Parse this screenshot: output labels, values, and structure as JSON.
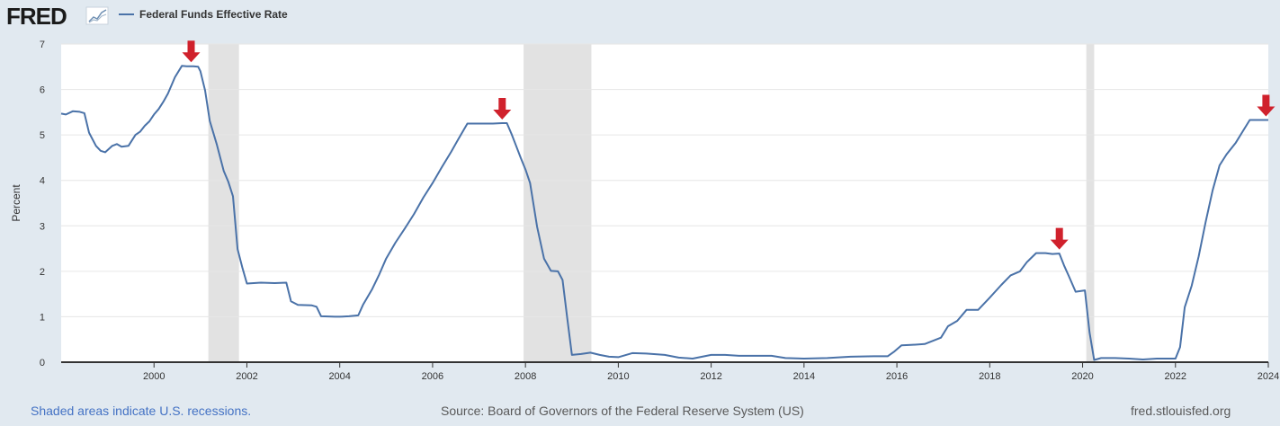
{
  "header": {
    "logo_text": "FRED",
    "legend_label": "Federal Funds Effective Rate"
  },
  "footer": {
    "recession_note": "Shaded areas indicate U.S. recessions.",
    "source": "Source: Board of Governors of the Federal Reserve System (US)",
    "site": "fred.stlouisfed.org"
  },
  "colors": {
    "line": "#4a72a8",
    "arrow": "#d0212c",
    "recession": "#e2e2e2",
    "background": "#e1e9f0",
    "plot": "#ffffff"
  },
  "chart_data": {
    "type": "line",
    "title": "",
    "xlabel": "",
    "ylabel": "Percent",
    "xlim": [
      1998.0,
      2024.0
    ],
    "ylim": [
      0,
      7
    ],
    "x_ticks": [
      "2000",
      "2002",
      "2004",
      "2006",
      "2008",
      "2010",
      "2012",
      "2014",
      "2016",
      "2018",
      "2020",
      "2022",
      "2024"
    ],
    "y_ticks": [
      "0",
      "1",
      "2",
      "3",
      "4",
      "5",
      "6",
      "7"
    ],
    "grid": "horizontal",
    "legend_position": "top-left",
    "recessions": [
      {
        "start": 2001.17,
        "end": 2001.83
      },
      {
        "start": 2007.96,
        "end": 2009.42
      },
      {
        "start": 2020.08,
        "end": 2020.25
      }
    ],
    "series": [
      {
        "name": "Federal Funds Effective Rate",
        "x": [
          1998.0,
          1998.1,
          1998.25,
          1998.4,
          1998.5,
          1998.6,
          1998.75,
          1998.85,
          1998.95,
          1999.1,
          1999.2,
          1999.3,
          1999.45,
          1999.6,
          1999.7,
          1999.8,
          1999.9,
          2000.0,
          2000.1,
          2000.2,
          2000.3,
          2000.45,
          2000.6,
          2000.7,
          2000.85,
          2000.95,
          2001.0,
          2001.1,
          2001.2,
          2001.35,
          2001.5,
          2001.6,
          2001.7,
          2001.8,
          2001.9,
          2002.0,
          2002.3,
          2002.6,
          2002.85,
          2002.95,
          2003.1,
          2003.4,
          2003.5,
          2003.6,
          2003.9,
          2004.0,
          2004.2,
          2004.4,
          2004.5,
          2004.7,
          2004.85,
          2005.0,
          2005.2,
          2005.4,
          2005.6,
          2005.8,
          2006.0,
          2006.2,
          2006.4,
          2006.55,
          2006.75,
          2007.0,
          2007.3,
          2007.5,
          2007.6,
          2007.7,
          2007.8,
          2007.9,
          2008.0,
          2008.1,
          2008.25,
          2008.4,
          2008.55,
          2008.7,
          2008.8,
          2008.9,
          2009.0,
          2009.2,
          2009.4,
          2009.6,
          2009.8,
          2010.0,
          2010.3,
          2010.6,
          2011.0,
          2011.3,
          2011.6,
          2012.0,
          2012.3,
          2012.6,
          2013.0,
          2013.3,
          2013.6,
          2014.0,
          2014.5,
          2015.0,
          2015.5,
          2015.8,
          2015.95,
          2016.1,
          2016.3,
          2016.6,
          2016.95,
          2017.1,
          2017.3,
          2017.5,
          2017.75,
          2018.0,
          2018.25,
          2018.45,
          2018.65,
          2018.8,
          2019.0,
          2019.2,
          2019.35,
          2019.5,
          2019.6,
          2019.7,
          2019.85,
          2020.05,
          2020.15,
          2020.25,
          2020.4,
          2020.7,
          2021.0,
          2021.3,
          2021.6,
          2021.8,
          2022.0,
          2022.1,
          2022.2,
          2022.35,
          2022.5,
          2022.65,
          2022.8,
          2022.95,
          2023.1,
          2023.3,
          2023.45,
          2023.6,
          2023.8,
          2024.0
        ],
        "values": [
          5.47,
          5.45,
          5.52,
          5.51,
          5.48,
          5.05,
          4.76,
          4.65,
          4.62,
          4.76,
          4.8,
          4.74,
          4.76,
          5.0,
          5.07,
          5.2,
          5.3,
          5.45,
          5.57,
          5.73,
          5.91,
          6.27,
          6.52,
          6.51,
          6.51,
          6.5,
          6.4,
          5.98,
          5.31,
          4.8,
          4.21,
          3.97,
          3.65,
          2.49,
          2.09,
          1.73,
          1.75,
          1.74,
          1.75,
          1.34,
          1.26,
          1.25,
          1.22,
          1.01,
          1.0,
          1.0,
          1.01,
          1.03,
          1.26,
          1.61,
          1.93,
          2.28,
          2.63,
          2.94,
          3.26,
          3.62,
          3.94,
          4.29,
          4.63,
          4.9,
          5.25,
          5.25,
          5.25,
          5.26,
          5.26,
          5.02,
          4.76,
          4.49,
          4.24,
          3.94,
          2.98,
          2.28,
          2.01,
          2.0,
          1.81,
          0.97,
          0.16,
          0.18,
          0.21,
          0.16,
          0.12,
          0.11,
          0.2,
          0.19,
          0.16,
          0.1,
          0.08,
          0.16,
          0.16,
          0.14,
          0.14,
          0.14,
          0.09,
          0.08,
          0.09,
          0.12,
          0.13,
          0.13,
          0.24,
          0.37,
          0.38,
          0.4,
          0.54,
          0.79,
          0.91,
          1.15,
          1.15,
          1.42,
          1.7,
          1.91,
          2.0,
          2.2,
          2.4,
          2.4,
          2.38,
          2.39,
          2.13,
          1.9,
          1.55,
          1.58,
          0.65,
          0.05,
          0.09,
          0.09,
          0.08,
          0.06,
          0.08,
          0.08,
          0.08,
          0.33,
          1.21,
          1.68,
          2.33,
          3.08,
          3.78,
          4.33,
          4.57,
          4.83,
          5.08,
          5.33,
          5.33,
          5.33
        ]
      }
    ],
    "annotations": [
      {
        "type": "arrow",
        "x": 2000.8,
        "y": 6.52
      },
      {
        "type": "arrow",
        "x": 2007.5,
        "y": 5.26
      },
      {
        "type": "arrow",
        "x": 2019.5,
        "y": 2.4
      },
      {
        "type": "arrow",
        "x": 2023.95,
        "y": 5.33
      }
    ]
  }
}
